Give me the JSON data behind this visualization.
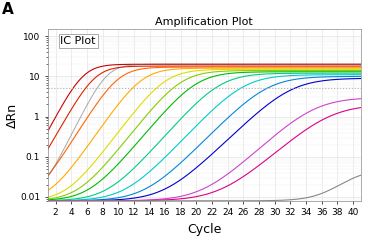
{
  "title": "Amplification Plot",
  "xlabel": "Cycle",
  "ylabel": "ΔRn",
  "label_A": "A",
  "label_IC": "IC Plot",
  "xlim": [
    1,
    41
  ],
  "ylim": [
    0.008,
    150
  ],
  "xticks": [
    2,
    4,
    6,
    8,
    10,
    12,
    14,
    16,
    18,
    20,
    22,
    24,
    26,
    28,
    30,
    32,
    34,
    36,
    38,
    40
  ],
  "ytick_vals": [
    0.01,
    0.1,
    1,
    10,
    100
  ],
  "ytick_labels": [
    "0.01",
    "0.1",
    "1",
    "10",
    "100"
  ],
  "threshold_y": 5.0,
  "background_color": "#ffffff",
  "plot_bg": "#ffffff",
  "curves": [
    {
      "color": "#cc0000",
      "midpoint": 5.5,
      "plateau": 20,
      "slope": 0.85
    },
    {
      "color": "#dd2200",
      "midpoint": 7.0,
      "plateau": 18,
      "slope": 0.8
    },
    {
      "color": "#ff6600",
      "midpoint": 10,
      "plateau": 17,
      "slope": 0.72
    },
    {
      "color": "#ffaa00",
      "midpoint": 13,
      "plateau": 16,
      "slope": 0.65
    },
    {
      "color": "#dddd00",
      "midpoint": 16,
      "plateau": 15,
      "slope": 0.6
    },
    {
      "color": "#88cc00",
      "midpoint": 18,
      "plateau": 14,
      "slope": 0.57
    },
    {
      "color": "#00bb00",
      "midpoint": 20,
      "plateau": 13,
      "slope": 0.54
    },
    {
      "color": "#00cc88",
      "midpoint": 23,
      "plateau": 12,
      "slope": 0.51
    },
    {
      "color": "#00cccc",
      "midpoint": 26,
      "plateau": 11,
      "slope": 0.48
    },
    {
      "color": "#0088dd",
      "midpoint": 29,
      "plateau": 10,
      "slope": 0.46
    },
    {
      "color": "#0000cc",
      "midpoint": 32,
      "plateau": 9,
      "slope": 0.44
    },
    {
      "color": "#cc44cc",
      "midpoint": 35,
      "plateau": 3.0,
      "slope": 0.42
    },
    {
      "color": "#dd0088",
      "midpoint": 37,
      "plateau": 2.0,
      "slope": 0.4
    },
    {
      "color": "#888888",
      "midpoint": 40,
      "plateau": 0.05,
      "slope": 0.55
    }
  ],
  "ic_curve": {
    "color": "#555555",
    "midpoint": 8.5,
    "plateau": 20,
    "slope": 0.9
  },
  "title_fontsize": 8,
  "axis_label_fontsize": 9,
  "tick_fontsize": 6.5,
  "ic_label_fontsize": 8,
  "a_label_fontsize": 11
}
